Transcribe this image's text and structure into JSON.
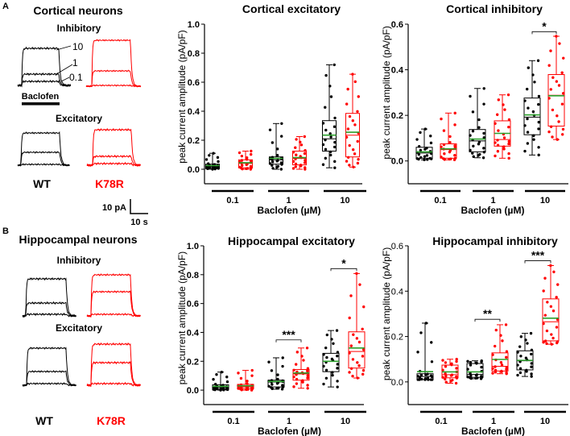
{
  "colors": {
    "wt": "#000000",
    "k78r": "#ff0000",
    "mean": "#2ca02c"
  },
  "panel_a": {
    "label": "A",
    "title": "Cortical neurons",
    "inhibitory": "Inhibitory",
    "excitatory": "Excitatory",
    "wt": "WT",
    "k78r": "K78R",
    "baclofen": "Baclofen",
    "dose_labels": [
      "10",
      "1",
      "0.1"
    ],
    "scale_y": "10 pA",
    "scale_x": "10 s"
  },
  "panel_b": {
    "label": "B",
    "title": "Hippocampal neurons",
    "inhibitory": "Inhibitory",
    "excitatory": "Excitatory",
    "wt": "WT",
    "k78r": "K78R"
  },
  "chart_data": [
    {
      "type": "box",
      "title": "Cortical excitatory",
      "ylabel": "peak current amplitude (pA/pF)",
      "xlabel": "Baclofen (µM)",
      "categories": [
        "0.1",
        "1",
        "10"
      ],
      "ylim": [
        -0.1,
        1.0
      ],
      "yticks": [
        "0.0",
        "0.2",
        "0.4",
        "0.6",
        "0.8",
        "1.0"
      ],
      "series": [
        {
          "name": "WT",
          "boxes": [
            {
              "min": 0.0,
              "q1": 0.01,
              "median": 0.02,
              "mean": 0.025,
              "q3": 0.035,
              "max": 0.11
            },
            {
              "min": 0.0,
              "q1": 0.035,
              "median": 0.065,
              "mean": 0.075,
              "q3": 0.085,
              "max": 0.315
            },
            {
              "min": 0.01,
              "q1": 0.125,
              "median": 0.21,
              "mean": 0.235,
              "q3": 0.335,
              "max": 0.72
            }
          ]
        },
        {
          "name": "K78R",
          "boxes": [
            {
              "min": 0.0,
              "q1": 0.01,
              "median": 0.04,
              "mean": 0.045,
              "q3": 0.065,
              "max": 0.125
            },
            {
              "min": 0.0,
              "q1": 0.03,
              "median": 0.075,
              "mean": 0.08,
              "q3": 0.125,
              "max": 0.225
            },
            {
              "min": 0.015,
              "q1": 0.085,
              "median": 0.235,
              "mean": 0.255,
              "q3": 0.385,
              "max": 0.655
            }
          ]
        }
      ],
      "significance": []
    },
    {
      "type": "box",
      "title": "Cortical inhibitory",
      "ylabel": "peak current amplitude (pA/pF)",
      "xlabel": "Baclofen (µM)",
      "categories": [
        "0.1",
        "1",
        "10"
      ],
      "ylim": [
        -0.1,
        0.6
      ],
      "yticks": [
        "0.0",
        "0.2",
        "0.4",
        "0.6"
      ],
      "series": [
        {
          "name": "WT",
          "boxes": [
            {
              "min": 0.005,
              "q1": 0.012,
              "median": 0.035,
              "mean": 0.04,
              "q3": 0.06,
              "max": 0.14
            },
            {
              "min": 0.014,
              "q1": 0.04,
              "median": 0.088,
              "mean": 0.096,
              "q3": 0.138,
              "max": 0.318
            },
            {
              "min": 0.026,
              "q1": 0.115,
              "median": 0.192,
              "mean": 0.202,
              "q3": 0.276,
              "max": 0.44
            }
          ]
        },
        {
          "name": "K78R",
          "boxes": [
            {
              "min": 0.005,
              "q1": 0.012,
              "median": 0.05,
              "mean": 0.053,
              "q3": 0.075,
              "max": 0.21
            },
            {
              "min": 0.012,
              "q1": 0.065,
              "median": 0.094,
              "mean": 0.121,
              "q3": 0.176,
              "max": 0.29
            },
            {
              "min": 0.094,
              "q1": 0.153,
              "median": 0.288,
              "mean": 0.286,
              "q3": 0.379,
              "max": 0.547
            }
          ]
        }
      ],
      "significance": [
        {
          "category": "10",
          "label": "*",
          "y": 0.567
        }
      ]
    },
    {
      "type": "box",
      "title": "Hippocampal excitatory",
      "ylabel": "peak current amplitude (pA/pF)",
      "xlabel": "Baclofen (µM)",
      "categories": [
        "0.1",
        "1",
        "10"
      ],
      "ylim": [
        -0.1,
        1.0
      ],
      "yticks": [
        "0.0",
        "0.2",
        "0.4",
        "0.6",
        "0.8",
        "1.0"
      ],
      "series": [
        {
          "name": "WT",
          "boxes": [
            {
              "min": 0.0,
              "q1": 0.007,
              "median": 0.019,
              "mean": 0.026,
              "q3": 0.037,
              "max": 0.125
            },
            {
              "min": 0.007,
              "q1": 0.022,
              "median": 0.056,
              "mean": 0.06,
              "q3": 0.069,
              "max": 0.224
            },
            {
              "min": 0.022,
              "q1": 0.128,
              "median": 0.2,
              "mean": 0.2,
              "q3": 0.255,
              "max": 0.413
            }
          ]
        },
        {
          "name": "K78R",
          "boxes": [
            {
              "min": 0.0,
              "q1": 0.01,
              "median": 0.022,
              "mean": 0.03,
              "q3": 0.04,
              "max": 0.137
            },
            {
              "min": 0.013,
              "q1": 0.069,
              "median": 0.112,
              "mean": 0.119,
              "q3": 0.143,
              "max": 0.292
            },
            {
              "min": 0.084,
              "q1": 0.153,
              "median": 0.268,
              "mean": 0.292,
              "q3": 0.404,
              "max": 0.808
            }
          ]
        }
      ],
      "significance": [
        {
          "category": "1",
          "label": "***",
          "y": 0.348
        },
        {
          "category": "10",
          "label": "*",
          "y": 0.842
        }
      ]
    },
    {
      "type": "box",
      "title": "Hippocampal inhibitory",
      "ylabel": "peak current amplitude (pA/pF)",
      "xlabel": "Baclofen (µM)",
      "categories": [
        "0.1",
        "1",
        "10"
      ],
      "ylim": [
        -0.1,
        0.6
      ],
      "yticks": [
        "0.0",
        "0.2",
        "0.4",
        "0.6"
      ],
      "series": [
        {
          "name": "WT",
          "boxes": [
            {
              "min": 0.01,
              "q1": 0.01,
              "median": 0.024,
              "mean": 0.045,
              "q3": 0.036,
              "max": 0.259
            },
            {
              "min": 0.014,
              "q1": 0.02,
              "median": 0.033,
              "mean": 0.044,
              "q3": 0.081,
              "max": 0.093
            },
            {
              "min": 0.024,
              "q1": 0.053,
              "median": 0.093,
              "mean": 0.095,
              "q3": 0.137,
              "max": 0.214
            }
          ]
        },
        {
          "name": "K78R",
          "boxes": [
            {
              "min": -0.006,
              "q1": 0.018,
              "median": 0.032,
              "mean": 0.044,
              "q3": 0.074,
              "max": 0.1
            },
            {
              "min": 0.036,
              "q1": 0.048,
              "median": 0.069,
              "mean": 0.099,
              "q3": 0.128,
              "max": 0.252
            },
            {
              "min": 0.166,
              "q1": 0.181,
              "median": 0.265,
              "mean": 0.281,
              "q3": 0.366,
              "max": 0.513
            }
          ]
        }
      ],
      "significance": [
        {
          "category": "1",
          "label": "**",
          "y": 0.276
        },
        {
          "category": "10",
          "label": "***",
          "y": 0.534
        }
      ]
    }
  ]
}
